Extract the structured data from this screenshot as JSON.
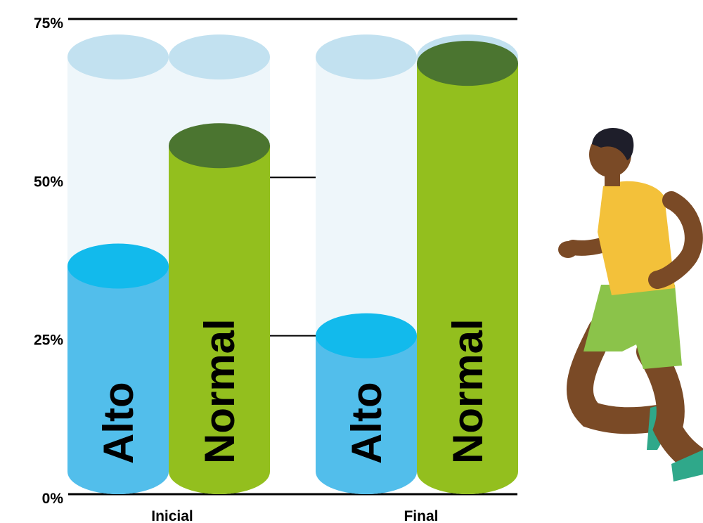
{
  "chart_data": {
    "type": "bar",
    "title": "",
    "xlabel": "",
    "ylabel": "",
    "ylim": [
      0,
      75
    ],
    "yticks": [
      "0%",
      "25%",
      "50%",
      "75%"
    ],
    "ytick_values": [
      0,
      25,
      50,
      75
    ],
    "categories": [
      "Inicial",
      "Final"
    ],
    "series": [
      {
        "name": "Alto",
        "values": [
          36,
          25
        ]
      },
      {
        "name": "Normal",
        "values": [
          55,
          68
        ]
      }
    ],
    "background_level": 69,
    "grid": true,
    "legend": "none",
    "colors": {
      "Alto": {
        "body": "#52BEEB",
        "top": "#12BAEC"
      },
      "Normal": {
        "body": "#93BF1E",
        "top": "#4B7530"
      },
      "background": {
        "body": "#EEF6FA",
        "top": "#C2E1F0"
      },
      "axis": "#000000"
    }
  },
  "illustration": {
    "icon": "runner-icon"
  }
}
